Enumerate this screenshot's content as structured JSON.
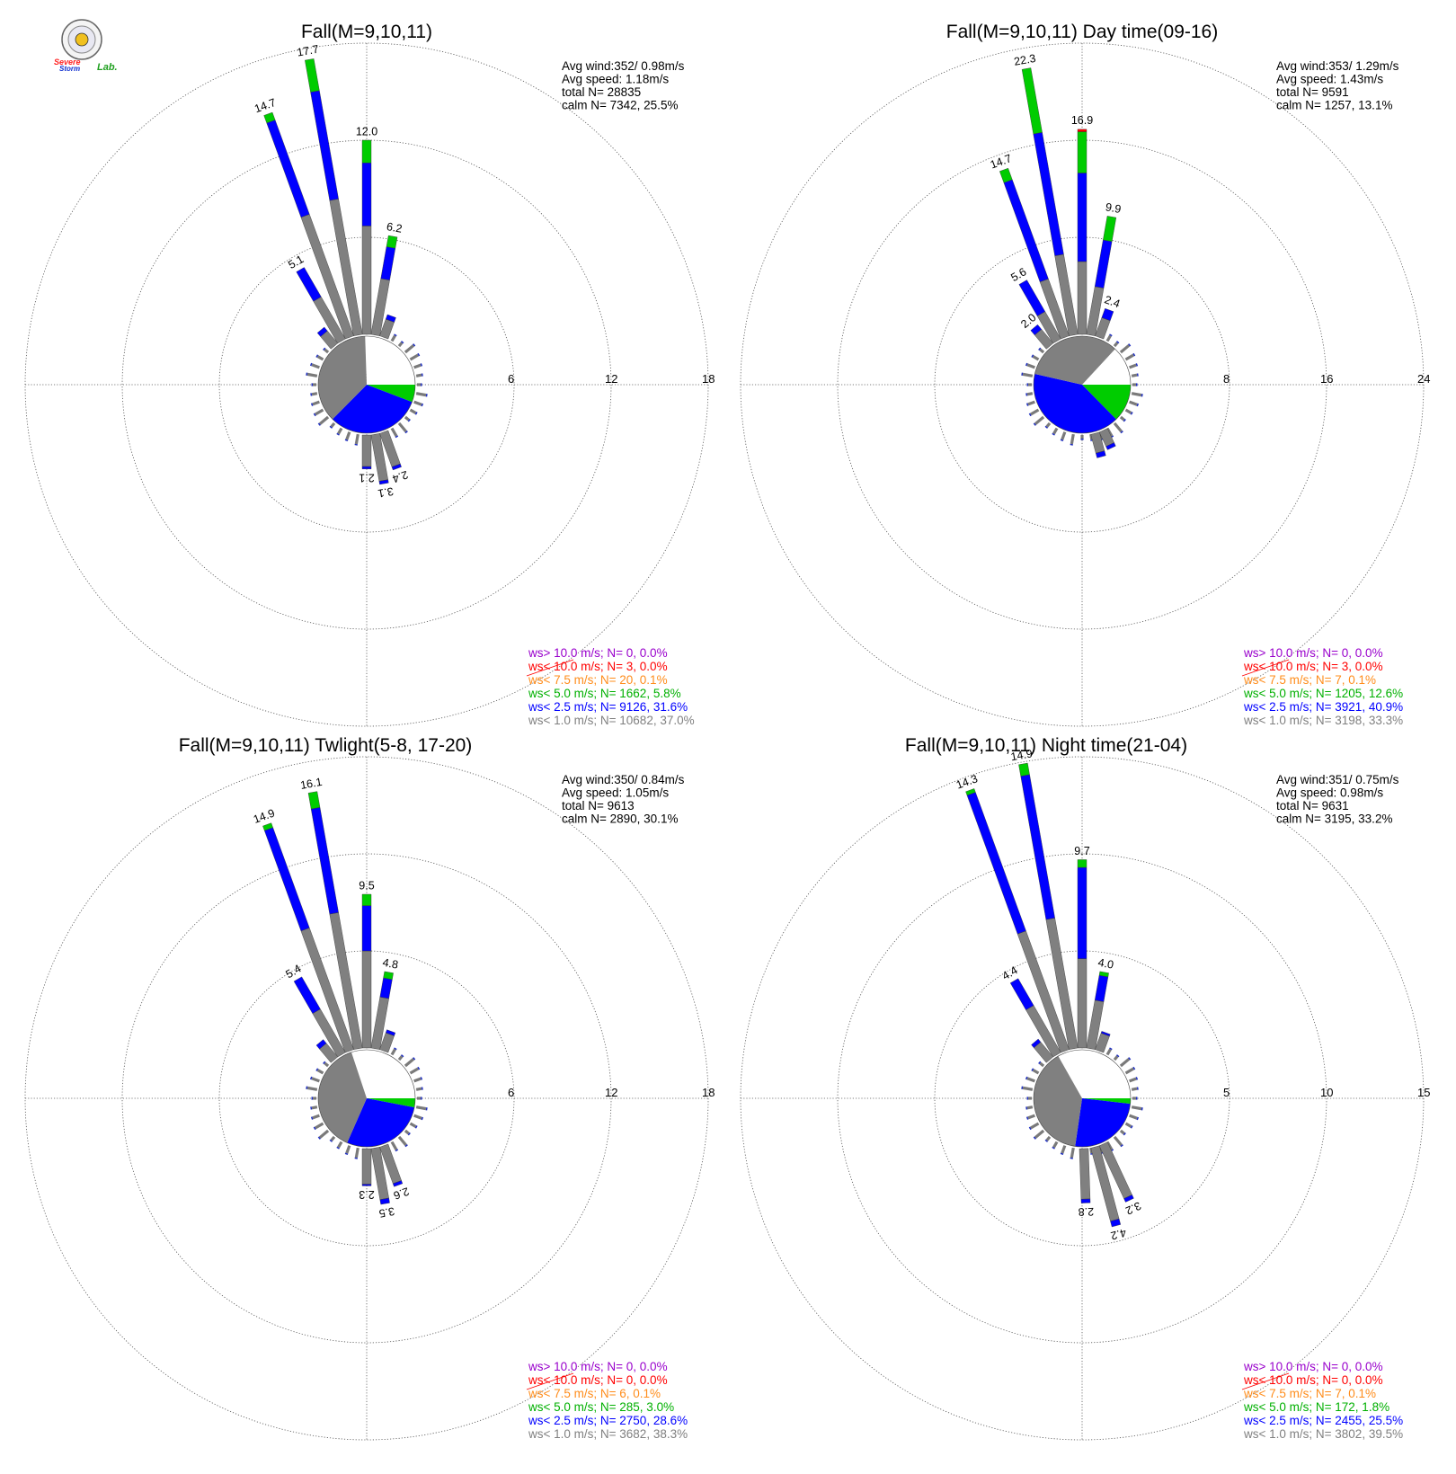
{
  "logo": {
    "line1": "Severe",
    "line2": "Storm",
    "line3": "Lab."
  },
  "colors": {
    "calm": "#ffffff",
    "lt1": "#808080",
    "lt2_5": "#0000ff",
    "lt5": "#00cc00",
    "lt7_5": "#ff8c1a",
    "lt10": "#ff0000",
    "gt10": "#9900cc"
  },
  "chart_data": [
    {
      "type": "wind-rose",
      "title": "Fall(M=9,10,11)",
      "stats": [
        "Avg wind:352/ 0.98m/s",
        "Avg speed: 1.18m/s",
        "total N=      28835",
        "calm N=   7342,  25.5%"
      ],
      "rmax": 18,
      "ticks": [
        6,
        12,
        18
      ],
      "grid": true,
      "pie": [
        {
          "bin": "calm",
          "value": 25.5
        },
        {
          "bin": "ws< 5.0",
          "value": 5.8
        },
        {
          "bin": "ws< 2.5",
          "value": 31.6
        },
        {
          "bin": "ws< 1.0",
          "value": 37.0
        }
      ],
      "directions": [
        {
          "dir": 10,
          "value": 6.2,
          "components": [
            3.5,
            2.0,
            0.7
          ],
          "label": "6.2"
        },
        {
          "dir": 0,
          "value": 12.0,
          "components": [
            6.7,
            3.9,
            1.4
          ],
          "label": "12.0"
        },
        {
          "dir": -10,
          "value": 17.7,
          "components": [
            8.5,
            6.8,
            2.0
          ],
          "label": "17.7"
        },
        {
          "dir": -20,
          "value": 14.7,
          "components": [
            8.0,
            6.2,
            0.5
          ],
          "label": "14.7"
        },
        {
          "dir": -30,
          "value": 5.1,
          "components": [
            3.0,
            2.1,
            0
          ],
          "label": "5.1"
        },
        {
          "dir": -40,
          "value": 1.3,
          "components": [
            1.0,
            0.3,
            0
          ],
          "label": ""
        },
        {
          "dir": 20,
          "value": 1.4,
          "components": [
            1.1,
            0.3,
            0
          ],
          "label": ""
        },
        {
          "dir": 160,
          "value": 2.4,
          "components": [
            2.2,
            0.2,
            0
          ],
          "label": "2.4"
        },
        {
          "dir": 170,
          "value": 3.1,
          "components": [
            2.9,
            0.2,
            0
          ],
          "label": "3.1"
        },
        {
          "dir": 180,
          "value": 2.1,
          "components": [
            1.95,
            0.15,
            0
          ],
          "label": "2.1"
        }
      ],
      "legend": [
        {
          "text": "ws> 10.0 m/s; N=      0,  0.0%",
          "color": "#9900cc"
        },
        {
          "text": "ws< 10.0 m/s; N=      3,  0.0%",
          "color": "#ff0000"
        },
        {
          "text": "ws<  7.5 m/s; N=     20,  0.1%",
          "color": "#ff8c1a"
        },
        {
          "text": "ws<  5.0 m/s; N=  1662,  5.8%",
          "color": "#00b000"
        },
        {
          "text": "ws<  2.5 m/s; N=  9126, 31.6%",
          "color": "#0000ff"
        },
        {
          "text": "ws<  1.0 m/s; N= 10682, 37.0%",
          "color": "#808080"
        }
      ]
    },
    {
      "type": "wind-rose",
      "title": "Fall(M=9,10,11) Day time(09-16)",
      "stats": [
        "Avg wind:353/ 1.29m/s",
        "Avg speed: 1.43m/s",
        "total N=        9591",
        "calm N=   1257,  13.1%"
      ],
      "rmax": 24,
      "ticks": [
        8,
        16,
        24
      ],
      "grid": true,
      "pie": [
        {
          "bin": "calm",
          "value": 13.1
        },
        {
          "bin": "ws< 5.0",
          "value": 12.6
        },
        {
          "bin": "ws< 2.5",
          "value": 40.9
        },
        {
          "bin": "ws< 1.0",
          "value": 33.3
        }
      ],
      "directions": [
        {
          "dir": 20,
          "value": 2.4,
          "components": [
            1.6,
            0.8,
            0
          ],
          "label": "2.4"
        },
        {
          "dir": 10,
          "value": 9.9,
          "components": [
            4.0,
            3.9,
            2.0
          ],
          "label": "9.9"
        },
        {
          "dir": 0,
          "value": 16.9,
          "components": [
            6.0,
            7.3,
            3.4,
            0.2
          ],
          "label": "16.9"
        },
        {
          "dir": -10,
          "value": 22.3,
          "components": [
            6.7,
            10.2,
            5.4
          ],
          "label": "22.3"
        },
        {
          "dir": -20,
          "value": 14.7,
          "components": [
            5.0,
            8.7,
            1.0
          ],
          "label": "14.7"
        },
        {
          "dir": -30,
          "value": 5.6,
          "components": [
            2.6,
            3.0,
            0
          ],
          "label": "5.6"
        },
        {
          "dir": -40,
          "value": 2.0,
          "components": [
            1.5,
            0.5,
            0
          ],
          "label": "2.0"
        },
        {
          "dir": 165,
          "value": 2.0,
          "components": [
            1.6,
            0.4,
            0
          ],
          "label": ""
        },
        {
          "dir": 155,
          "value": 1.6,
          "components": [
            1.3,
            0.3,
            0
          ],
          "label": ""
        }
      ],
      "legend": [
        {
          "text": "ws> 10.0 m/s; N=      0,  0.0%",
          "color": "#9900cc"
        },
        {
          "text": "ws< 10.0 m/s; N=      3,  0.0%",
          "color": "#ff0000"
        },
        {
          "text": "ws<  7.5 m/s; N=      7,  0.1%",
          "color": "#ff8c1a"
        },
        {
          "text": "ws<  5.0 m/s; N=  1205, 12.6%",
          "color": "#00b000"
        },
        {
          "text": "ws<  2.5 m/s; N=  3921, 40.9%",
          "color": "#0000ff"
        },
        {
          "text": "ws<  1.0 m/s; N=  3198, 33.3%",
          "color": "#808080"
        }
      ]
    },
    {
      "type": "wind-rose",
      "title": "Fall(M=9,10,11) Twlight(5-8, 17-20)",
      "stats": [
        "Avg wind:350/ 0.84m/s",
        "Avg speed: 1.05m/s",
        "total N=        9613",
        "calm N=   2890,  30.1%"
      ],
      "rmax": 18,
      "ticks": [
        6,
        12,
        18
      ],
      "grid": true,
      "pie": [
        {
          "bin": "calm",
          "value": 30.1
        },
        {
          "bin": "ws< 5.0",
          "value": 3.0
        },
        {
          "bin": "ws< 2.5",
          "value": 28.6
        },
        {
          "bin": "ws< 1.0",
          "value": 38.3
        }
      ],
      "directions": [
        {
          "dir": 10,
          "value": 4.8,
          "components": [
            3.2,
            1.2,
            0.4
          ],
          "label": "4.8"
        },
        {
          "dir": 0,
          "value": 9.5,
          "components": [
            6.0,
            2.8,
            0.7
          ],
          "label": "9.5"
        },
        {
          "dir": -10,
          "value": 16.1,
          "components": [
            8.5,
            6.6,
            1.0
          ],
          "label": "16.1"
        },
        {
          "dir": -20,
          "value": 14.9,
          "components": [
            8.0,
            6.6,
            0.3
          ],
          "label": "14.9"
        },
        {
          "dir": -30,
          "value": 5.4,
          "components": [
            3.1,
            2.3,
            0
          ],
          "label": "5.4"
        },
        {
          "dir": -40,
          "value": 1.4,
          "components": [
            1.1,
            0.3,
            0
          ],
          "label": ""
        },
        {
          "dir": 20,
          "value": 1.3,
          "components": [
            1.1,
            0.2,
            0
          ],
          "label": ""
        },
        {
          "dir": 160,
          "value": 2.6,
          "components": [
            2.4,
            0.2,
            0
          ],
          "label": "2.6"
        },
        {
          "dir": 170,
          "value": 3.5,
          "components": [
            3.2,
            0.3,
            0
          ],
          "label": "3.5"
        },
        {
          "dir": 180,
          "value": 2.3,
          "components": [
            2.2,
            0.1,
            0
          ],
          "label": "2.3"
        }
      ],
      "legend": [
        {
          "text": "ws> 10.0 m/s; N=      0,  0.0%",
          "color": "#9900cc"
        },
        {
          "text": "ws< 10.0 m/s; N=      0,  0.0%",
          "color": "#ff0000"
        },
        {
          "text": "ws<  7.5 m/s; N=      6,  0.1%",
          "color": "#ff8c1a"
        },
        {
          "text": "ws<  5.0 m/s; N=    285,  3.0%",
          "color": "#00b000"
        },
        {
          "text": "ws<  2.5 m/s; N=  2750, 28.6%",
          "color": "#0000ff"
        },
        {
          "text": "ws<  1.0 m/s; N=  3682, 38.3%",
          "color": "#808080"
        }
      ]
    },
    {
      "type": "wind-rose",
      "title": "Fall(M=9,10,11) Night time(21-04)",
      "stats": [
        "Avg wind:351/ 0.75m/s",
        "Avg speed: 0.98m/s",
        "total N=        9631",
        "calm N=   3195,  33.2%"
      ],
      "rmax": 15,
      "ticks": [
        5,
        10,
        15
      ],
      "grid": true,
      "pie": [
        {
          "bin": "calm",
          "value": 33.2
        },
        {
          "bin": "ws< 5.0",
          "value": 1.8
        },
        {
          "bin": "ws< 2.5",
          "value": 25.5
        },
        {
          "bin": "ws< 1.0",
          "value": 39.5
        }
      ],
      "directions": [
        {
          "dir": 10,
          "value": 4.0,
          "components": [
            2.5,
            1.3,
            0.2
          ],
          "label": "4.0"
        },
        {
          "dir": 0,
          "value": 9.7,
          "components": [
            4.6,
            4.7,
            0.4
          ],
          "label": "9.7"
        },
        {
          "dir": -10,
          "value": 14.9,
          "components": [
            6.8,
            7.5,
            0.6
          ],
          "label": "14.9"
        },
        {
          "dir": -20,
          "value": 14.3,
          "components": [
            6.5,
            7.6,
            0.2
          ],
          "label": "14.3"
        },
        {
          "dir": -30,
          "value": 4.4,
          "components": [
            2.8,
            1.6,
            0
          ],
          "label": "4.4"
        },
        {
          "dir": -40,
          "value": 1.2,
          "components": [
            1.0,
            0.2,
            0
          ],
          "label": ""
        },
        {
          "dir": 20,
          "value": 1.0,
          "components": [
            0.9,
            0.1,
            0
          ],
          "label": ""
        },
        {
          "dir": 155,
          "value": 3.2,
          "components": [
            3.0,
            0.2,
            0
          ],
          "label": "3.2"
        },
        {
          "dir": 165,
          "value": 4.2,
          "components": [
            3.9,
            0.3,
            0
          ],
          "label": "4.2"
        },
        {
          "dir": 178,
          "value": 2.8,
          "components": [
            2.6,
            0.2,
            0
          ],
          "label": "2.8"
        }
      ],
      "legend": [
        {
          "text": "ws> 10.0 m/s; N=      0,  0.0%",
          "color": "#9900cc"
        },
        {
          "text": "ws< 10.0 m/s; N=      0,  0.0%",
          "color": "#ff0000"
        },
        {
          "text": "ws<  7.5 m/s; N=      7,  0.1%",
          "color": "#ff8c1a"
        },
        {
          "text": "ws<  5.0 m/s; N=    172,  1.8%",
          "color": "#00b000"
        },
        {
          "text": "ws<  2.5 m/s; N=  2455, 25.5%",
          "color": "#0000ff"
        },
        {
          "text": "ws<  1.0 m/s; N=  3802, 39.5%",
          "color": "#808080"
        }
      ]
    }
  ]
}
